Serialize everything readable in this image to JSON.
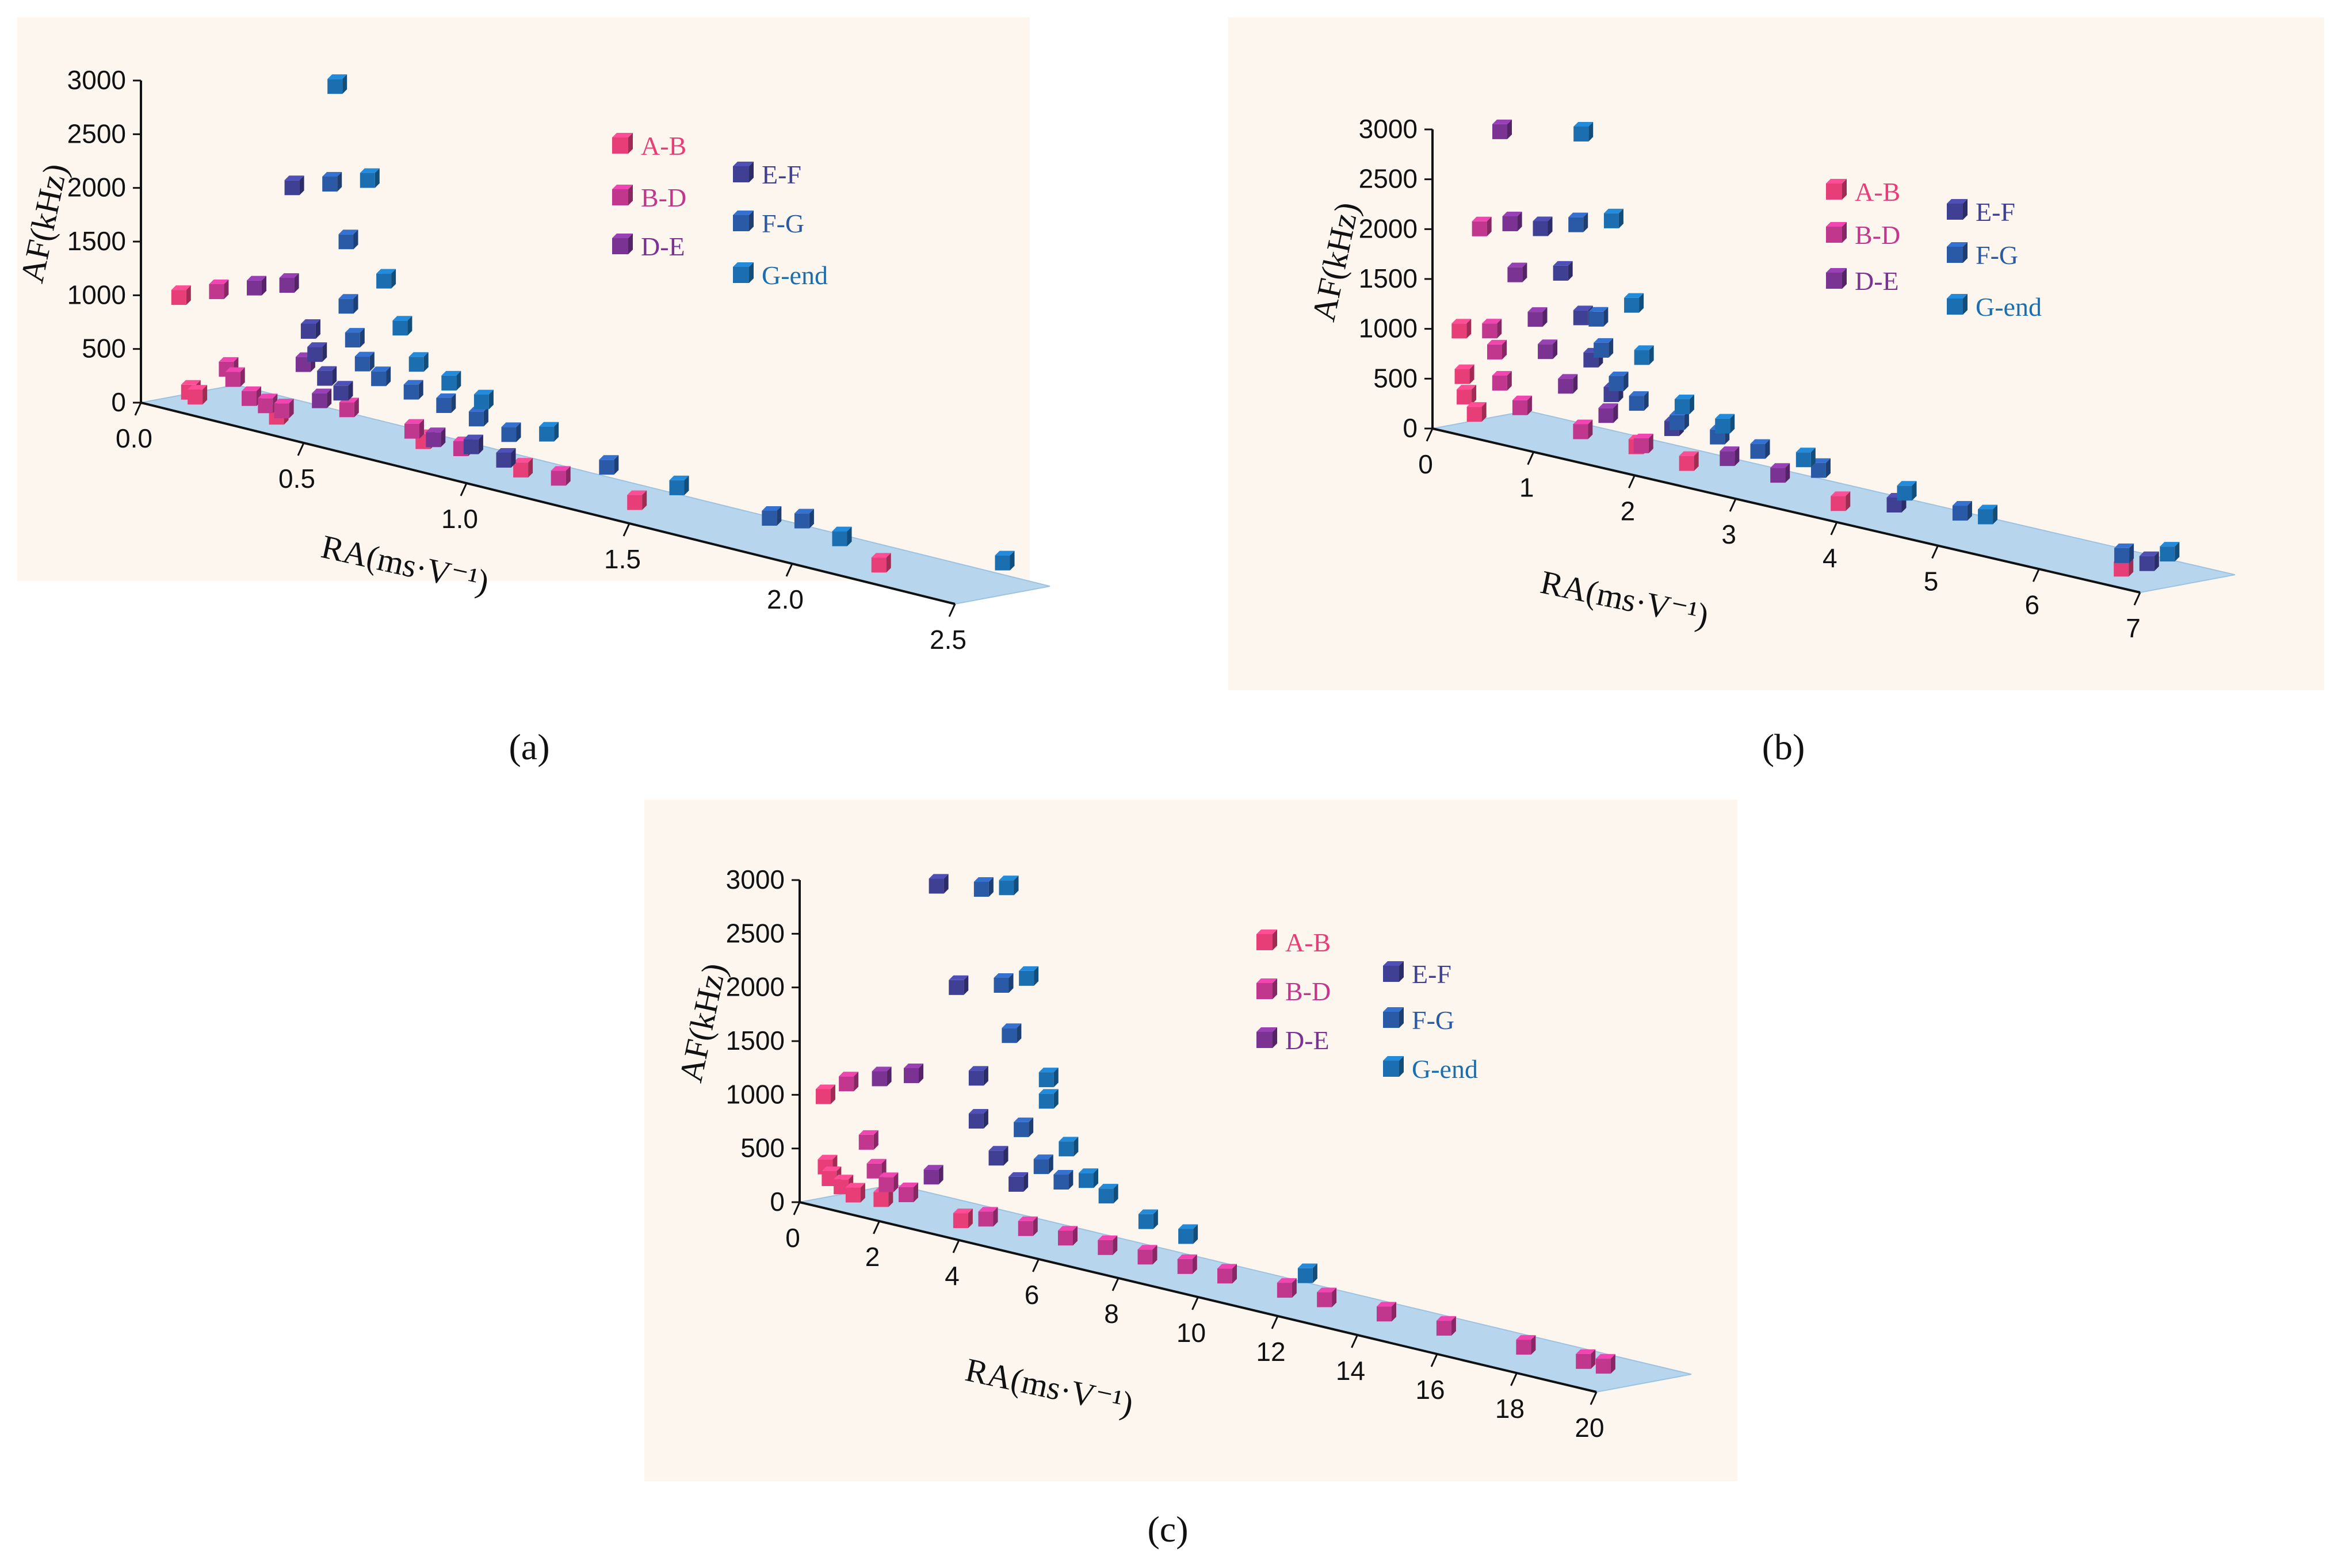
{
  "figure": {
    "panel_labels": [
      "(a)",
      "(b)",
      "(c)"
    ]
  },
  "chart_data": [
    {
      "id": "a",
      "type": "scatter3d",
      "title": "",
      "xlabel": "RA(ms·V⁻¹)",
      "ylabel": "AF(kHz)",
      "x_ticks": [
        "0.0",
        "0.5",
        "1.0",
        "1.5",
        "2.0",
        "2.5"
      ],
      "y_ticks": [
        "0",
        "500",
        "1000",
        "1500",
        "2000",
        "2500",
        "3000"
      ],
      "xlim": [
        0,
        2.5
      ],
      "ylim": [
        0,
        3000
      ],
      "legend": [
        "A-B",
        "B-D",
        "D-E",
        "E-F",
        "F-G",
        "G-end"
      ],
      "series": [
        {
          "name": "A-B",
          "color": "#e83e77",
          "points": [
            [
              0.05,
              980
            ],
            [
              0.08,
              120
            ],
            [
              0.1,
              90
            ],
            [
              0.35,
              90
            ],
            [
              0.8,
              200
            ],
            [
              1.1,
              160
            ],
            [
              1.45,
              120
            ],
            [
              2.2,
              100
            ]
          ]
        },
        {
          "name": "B-D",
          "color": "#c1378e",
          "points": [
            [
              0.15,
              1100
            ],
            [
              0.18,
              400
            ],
            [
              0.2,
              320
            ],
            [
              0.25,
              180
            ],
            [
              0.3,
              150
            ],
            [
              0.35,
              140
            ],
            [
              0.55,
              300
            ],
            [
              0.75,
              250
            ],
            [
              0.9,
              200
            ],
            [
              1.2,
              150
            ]
          ]
        },
        {
          "name": "D-E",
          "color": "#7a3392",
          "points": [
            [
              0.25,
              1200
            ],
            [
              0.35,
              1300
            ],
            [
              0.4,
              600
            ],
            [
              0.45,
              300
            ],
            [
              0.8,
              200
            ]
          ]
        },
        {
          "name": "E-F",
          "color": "#3f3f93",
          "points": [
            [
              0.35,
              2200
            ],
            [
              0.4,
              900
            ],
            [
              0.42,
              700
            ],
            [
              0.45,
              500
            ],
            [
              0.5,
              400
            ],
            [
              0.9,
              200
            ],
            [
              1.0,
              150
            ]
          ]
        },
        {
          "name": "F-G",
          "color": "#2a5aa6",
          "points": [
            [
              0.45,
              2300
            ],
            [
              0.5,
              1800
            ],
            [
              0.5,
              1200
            ],
            [
              0.52,
              900
            ],
            [
              0.55,
              700
            ],
            [
              0.6,
              600
            ],
            [
              0.7,
              550
            ],
            [
              0.8,
              500
            ],
            [
              0.9,
              450
            ],
            [
              1.0,
              380
            ],
            [
              1.3,
              300
            ],
            [
              1.8,
              200
            ],
            [
              1.9,
              250
            ]
          ]
        },
        {
          "name": "G-end",
          "color": "#1b6fb0",
          "points": [
            [
              0.45,
              3200
            ],
            [
              0.55,
              2400
            ],
            [
              0.6,
              1500
            ],
            [
              0.65,
              1100
            ],
            [
              0.7,
              800
            ],
            [
              0.8,
              700
            ],
            [
              0.9,
              600
            ],
            [
              1.1,
              450
            ],
            [
              1.5,
              250
            ],
            [
              2.0,
              150
            ],
            [
              2.5,
              300
            ]
          ]
        }
      ]
    },
    {
      "id": "b",
      "type": "scatter3d",
      "title": "",
      "xlabel": "RA(ms·V⁻¹)",
      "ylabel": "AF(kHz)",
      "x_ticks": [
        "0",
        "1",
        "2",
        "3",
        "4",
        "5",
        "6",
        "7"
      ],
      "y_ticks": [
        "0",
        "500",
        "1000",
        "1500",
        "2000",
        "2500",
        "3000"
      ],
      "xlim": [
        0,
        7
      ],
      "ylim": [
        0,
        3000
      ],
      "legend": [
        "A-B",
        "B-D",
        "D-E",
        "E-F",
        "F-G",
        "G-end"
      ],
      "series": [
        {
          "name": "A-B",
          "color": "#e83e77",
          "points": [
            [
              0.05,
              950
            ],
            [
              0.08,
              500
            ],
            [
              0.1,
              300
            ],
            [
              0.2,
              150
            ],
            [
              1.8,
              200
            ],
            [
              2.3,
              150
            ],
            [
              3.8,
              100
            ],
            [
              6.6,
              100
            ]
          ]
        },
        {
          "name": "B-D",
          "color": "#c1378e",
          "points": [
            [
              0.2,
              2000
            ],
            [
              0.3,
              1000
            ],
            [
              0.35,
              800
            ],
            [
              0.4,
              500
            ],
            [
              0.6,
              300
            ],
            [
              1.2,
              200
            ],
            [
              1.8,
              200
            ]
          ]
        },
        {
          "name": "D-E",
          "color": "#7a3392",
          "points": [
            [
              0.35,
              3000
            ],
            [
              0.45,
              2100
            ],
            [
              0.5,
              1600
            ],
            [
              0.7,
              1200
            ],
            [
              0.8,
              900
            ],
            [
              1.0,
              600
            ],
            [
              1.4,
              400
            ],
            [
              2.6,
              250
            ],
            [
              3.1,
              200
            ]
          ]
        },
        {
          "name": "E-F",
          "color": "#3f3f93",
          "points": [
            [
              0.7,
              2100
            ],
            [
              0.9,
              1700
            ],
            [
              1.1,
              1300
            ],
            [
              1.2,
              900
            ],
            [
              1.4,
              600
            ],
            [
              2.0,
              400
            ],
            [
              4.2,
              150
            ],
            [
              6.7,
              150
            ]
          ]
        },
        {
          "name": "F-G",
          "color": "#2a5aa6",
          "points": [
            [
              1.0,
              2200
            ],
            [
              1.2,
              1300
            ],
            [
              1.25,
              1000
            ],
            [
              1.4,
              700
            ],
            [
              1.6,
              550
            ],
            [
              2.0,
              450
            ],
            [
              2.4,
              400
            ],
            [
              2.8,
              350
            ],
            [
              3.4,
              300
            ],
            [
              4.8,
              200
            ],
            [
              6.4,
              150
            ]
          ]
        },
        {
          "name": "G-end",
          "color": "#1b6fb0",
          "points": [
            [
              1.0,
              3100
            ],
            [
              1.3,
              2300
            ],
            [
              1.5,
              1500
            ],
            [
              1.6,
              1000
            ],
            [
              2.0,
              600
            ],
            [
              2.4,
              500
            ],
            [
              3.2,
              350
            ],
            [
              4.2,
              250
            ],
            [
              5.0,
              200
            ],
            [
              6.8,
              250
            ]
          ]
        }
      ]
    },
    {
      "id": "c",
      "type": "scatter3d",
      "title": "",
      "xlabel": "RA(ms·V⁻¹)",
      "ylabel": "AF(kHz)",
      "x_ticks": [
        "0",
        "2",
        "4",
        "6",
        "8",
        "10",
        "12",
        "14",
        "16",
        "18",
        "20"
      ],
      "y_ticks": [
        "0",
        "500",
        "1000",
        "1500",
        "2000",
        "2500",
        "3000"
      ],
      "xlim": [
        0,
        20
      ],
      "ylim": [
        0,
        3000
      ],
      "legend": [
        "A-B",
        "B-D",
        "D-E",
        "E-F",
        "F-G",
        "G-end"
      ],
      "series": [
        {
          "name": "A-B",
          "color": "#e83e77",
          "points": [
            [
              0.05,
              950
            ],
            [
              0.1,
              300
            ],
            [
              0.2,
              200
            ],
            [
              0.5,
              150
            ],
            [
              0.8,
              100
            ],
            [
              1.5,
              120
            ],
            [
              3.5,
              100
            ]
          ]
        },
        {
          "name": "B-D",
          "color": "#c1378e",
          "points": [
            [
              0.5,
              1100
            ],
            [
              1.0,
              600
            ],
            [
              1.2,
              350
            ],
            [
              1.5,
              250
            ],
            [
              2.0,
              200
            ],
            [
              4.0,
              150
            ],
            [
              5.0,
              150
            ],
            [
              6.0,
              150
            ],
            [
              7.0,
              150
            ],
            [
              8.0,
              150
            ],
            [
              9.0,
              150
            ],
            [
              10.0,
              150
            ],
            [
              11.5,
              150
            ],
            [
              12.5,
              150
            ],
            [
              14.0,
              150
            ],
            [
              15.5,
              150
            ],
            [
              17.5,
              150
            ],
            [
              19.0,
              150
            ],
            [
              19.5,
              150
            ]
          ]
        },
        {
          "name": "D-E",
          "color": "#7a3392",
          "points": [
            [
              1.2,
              1200
            ],
            [
              2.0,
              1300
            ],
            [
              2.5,
              400
            ]
          ]
        },
        {
          "name": "E-F",
          "color": "#3f3f93",
          "points": [
            [
              2.5,
              3100
            ],
            [
              3.0,
              2200
            ],
            [
              3.5,
              1400
            ],
            [
              3.5,
              1000
            ],
            [
              4.0,
              700
            ],
            [
              4.5,
              500
            ]
          ]
        },
        {
          "name": "F-G",
          "color": "#2a5aa6",
          "points": [
            [
              3.5,
              3150
            ],
            [
              4.0,
              2300
            ],
            [
              4.2,
              1850
            ],
            [
              4.5,
              1000
            ],
            [
              5.0,
              700
            ],
            [
              5.5,
              600
            ]
          ]
        },
        {
          "name": "G-end",
          "color": "#1b6fb0",
          "points": [
            [
              4.0,
              3200
            ],
            [
              4.5,
              2400
            ],
            [
              5.0,
              1500
            ],
            [
              5.0,
              1300
            ],
            [
              5.5,
              900
            ],
            [
              6.0,
              650
            ],
            [
              6.5,
              550
            ],
            [
              7.5,
              400
            ],
            [
              8.5,
              350
            ],
            [
              11.5,
              250
            ]
          ]
        }
      ]
    }
  ]
}
